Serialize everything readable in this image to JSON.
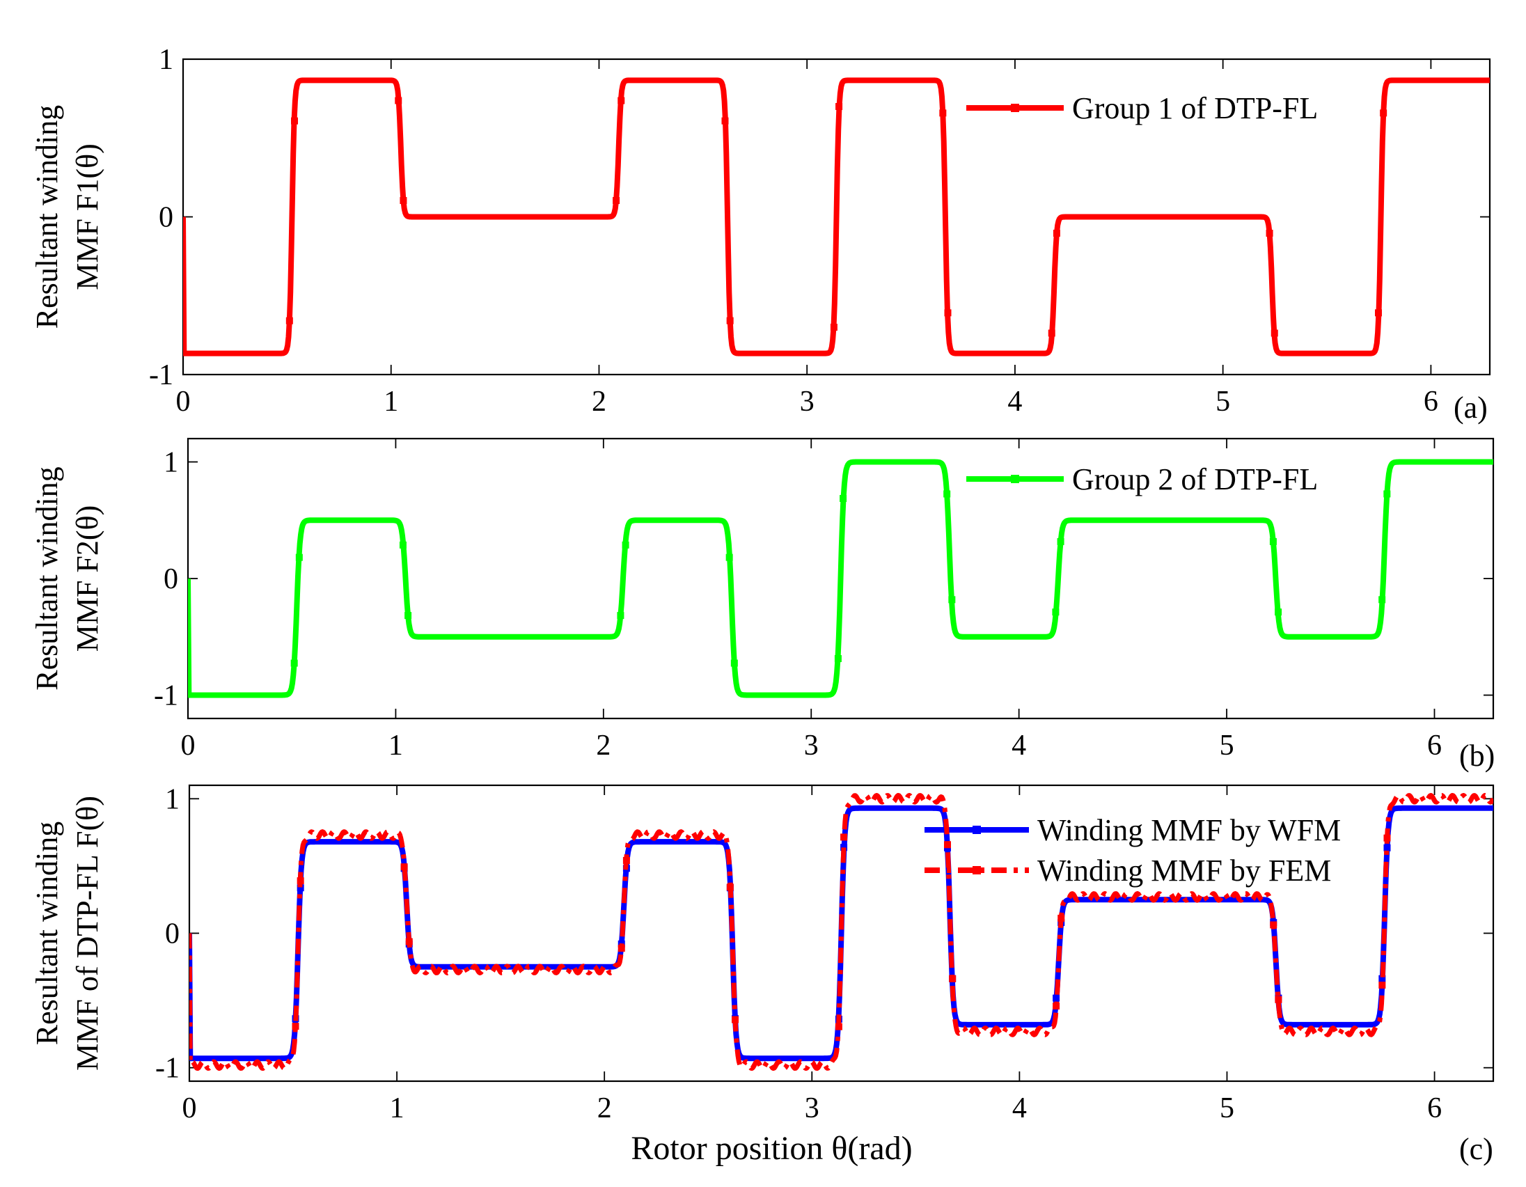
{
  "chart_data": [
    {
      "type": "line",
      "panel_tag": "(a)",
      "ylabel_lines": [
        "Resultant winding",
        "MMF F1(θ)"
      ],
      "xlabel": "",
      "xlim": [
        0,
        6.2832
      ],
      "ylim": [
        -1,
        1
      ],
      "xticks": [
        0,
        1,
        2,
        3,
        4,
        5,
        6
      ],
      "xtick_labels": [
        "0",
        "1",
        "2",
        "3",
        "4",
        "5",
        "6"
      ],
      "yticks": [
        -1,
        0,
        1
      ],
      "ytick_labels": [
        "-1",
        "0",
        "1"
      ],
      "legend_position": "top-right",
      "series": [
        {
          "name": "Group 1 of DTP-FL",
          "color": "#ff0000",
          "style": "solid",
          "levels": [
            -0.866,
            0.866,
            0,
            0.866,
            -0.866,
            0.866,
            -0.866,
            0,
            -0.866,
            0.866
          ],
          "edges": [
            0.5236,
            1.0472,
            2.0944,
            2.618,
            3.1416,
            3.6652,
            4.1888,
            5.236,
            5.7596
          ]
        }
      ]
    },
    {
      "type": "line",
      "panel_tag": "(b)",
      "ylabel_lines": [
        "Resultant winding",
        "MMF  F2(θ)"
      ],
      "xlabel": "",
      "xlim": [
        0,
        6.2832
      ],
      "ylim": [
        -1.2,
        1.2
      ],
      "xticks": [
        0,
        1,
        2,
        3,
        4,
        5,
        6
      ],
      "xtick_labels": [
        "0",
        "1",
        "2",
        "3",
        "4",
        "5",
        "6"
      ],
      "yticks": [
        -1,
        0,
        1
      ],
      "ytick_labels": [
        "-1",
        "0",
        "1"
      ],
      "legend_position": "top-right",
      "series": [
        {
          "name": "Group 2 of DTP-FL",
          "color": "#00ff00",
          "style": "solid",
          "levels": [
            -1,
            0.5,
            -0.5,
            0.5,
            -1,
            1,
            -0.5,
            0.5,
            -0.5,
            1
          ],
          "edges": [
            0.5236,
            1.0472,
            2.0944,
            2.618,
            3.1416,
            3.6652,
            4.1888,
            5.236,
            5.7596
          ]
        }
      ]
    },
    {
      "type": "line",
      "panel_tag": "(c)",
      "ylabel_lines": [
        "Resultant winding",
        "MMF of DTP-FL F(θ)"
      ],
      "xlabel": "Rotor position θ(rad)",
      "xlim": [
        0,
        6.2832
      ],
      "ylim": [
        -1.1,
        1.1
      ],
      "xticks": [
        0,
        1,
        2,
        3,
        4,
        5,
        6
      ],
      "xtick_labels": [
        "0",
        "1",
        "2",
        "3",
        "4",
        "5",
        "6"
      ],
      "yticks": [
        -1,
        0,
        1
      ],
      "ytick_labels": [
        "-1",
        "0",
        "1"
      ],
      "legend_position": "top-right",
      "series": [
        {
          "name": "Winding MMF by WFM",
          "color": "#0000ff",
          "style": "solid",
          "levels": [
            -0.93,
            0.68,
            -0.25,
            0.68,
            -0.93,
            0.93,
            -0.68,
            0.25,
            -0.68,
            0.93
          ],
          "edges": [
            0.5236,
            1.0472,
            2.0944,
            2.618,
            3.1416,
            3.6652,
            4.1888,
            5.236,
            5.7596
          ]
        },
        {
          "name": "Winding MMF by FEM",
          "color": "#ff0000",
          "style": "dashdot",
          "levels": [
            -0.98,
            0.73,
            -0.27,
            0.73,
            -0.98,
            1.0,
            -0.73,
            0.27,
            -0.73,
            1.0
          ],
          "edges": [
            0.5236,
            1.0472,
            2.0944,
            2.618,
            3.1416,
            3.6652,
            4.1888,
            5.236,
            5.7596
          ]
        }
      ]
    }
  ]
}
